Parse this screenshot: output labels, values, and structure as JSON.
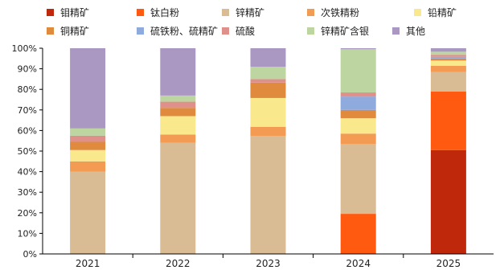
{
  "chart_data": {
    "type": "bar",
    "stacked": true,
    "categories": [
      "2021",
      "2022",
      "2023",
      "2024",
      "2025"
    ],
    "ylim": [
      0,
      100
    ],
    "yticks": [
      "0%",
      "10%",
      "20%",
      "30%",
      "40%",
      "50%",
      "60%",
      "70%",
      "80%",
      "90%",
      "100%"
    ],
    "grid": false,
    "legend_position": "top",
    "series": [
      {
        "name": "钼精矿",
        "color": "#c0280b",
        "values": [
          0,
          0,
          0,
          0,
          50.5
        ]
      },
      {
        "name": "钛白粉",
        "color": "#ff5a0f",
        "values": [
          0,
          0,
          0,
          19.5,
          28.5
        ]
      },
      {
        "name": "锌精矿",
        "color": "#d9bc93",
        "values": [
          40,
          54,
          57.3,
          34,
          9.5
        ]
      },
      {
        "name": "次铁精粉",
        "color": "#f39a53",
        "values": [
          5,
          4,
          4.5,
          5,
          3
        ]
      },
      {
        "name": "铅精矿",
        "color": "#f9e88c",
        "values": [
          5.5,
          9,
          14,
          7.5,
          2.5
        ]
      },
      {
        "name": "铜精矿",
        "color": "#e08a3d",
        "values": [
          4,
          4,
          7.5,
          4,
          1
        ]
      },
      {
        "name": "硫铁粉、硫精矿",
        "color": "#8faadc",
        "values": [
          0,
          0,
          0,
          6.5,
          0.8
        ]
      },
      {
        "name": "硫酸",
        "color": "#e0908a",
        "values": [
          3,
          3,
          1.7,
          2,
          1
        ]
      },
      {
        "name": "锌精矿含银",
        "color": "#bcd5a1",
        "values": [
          3.5,
          3,
          6,
          21,
          1.5
        ]
      },
      {
        "name": "其他",
        "color": "#aa98c2",
        "values": [
          39,
          23,
          9,
          0.5,
          1.7
        ]
      }
    ]
  }
}
